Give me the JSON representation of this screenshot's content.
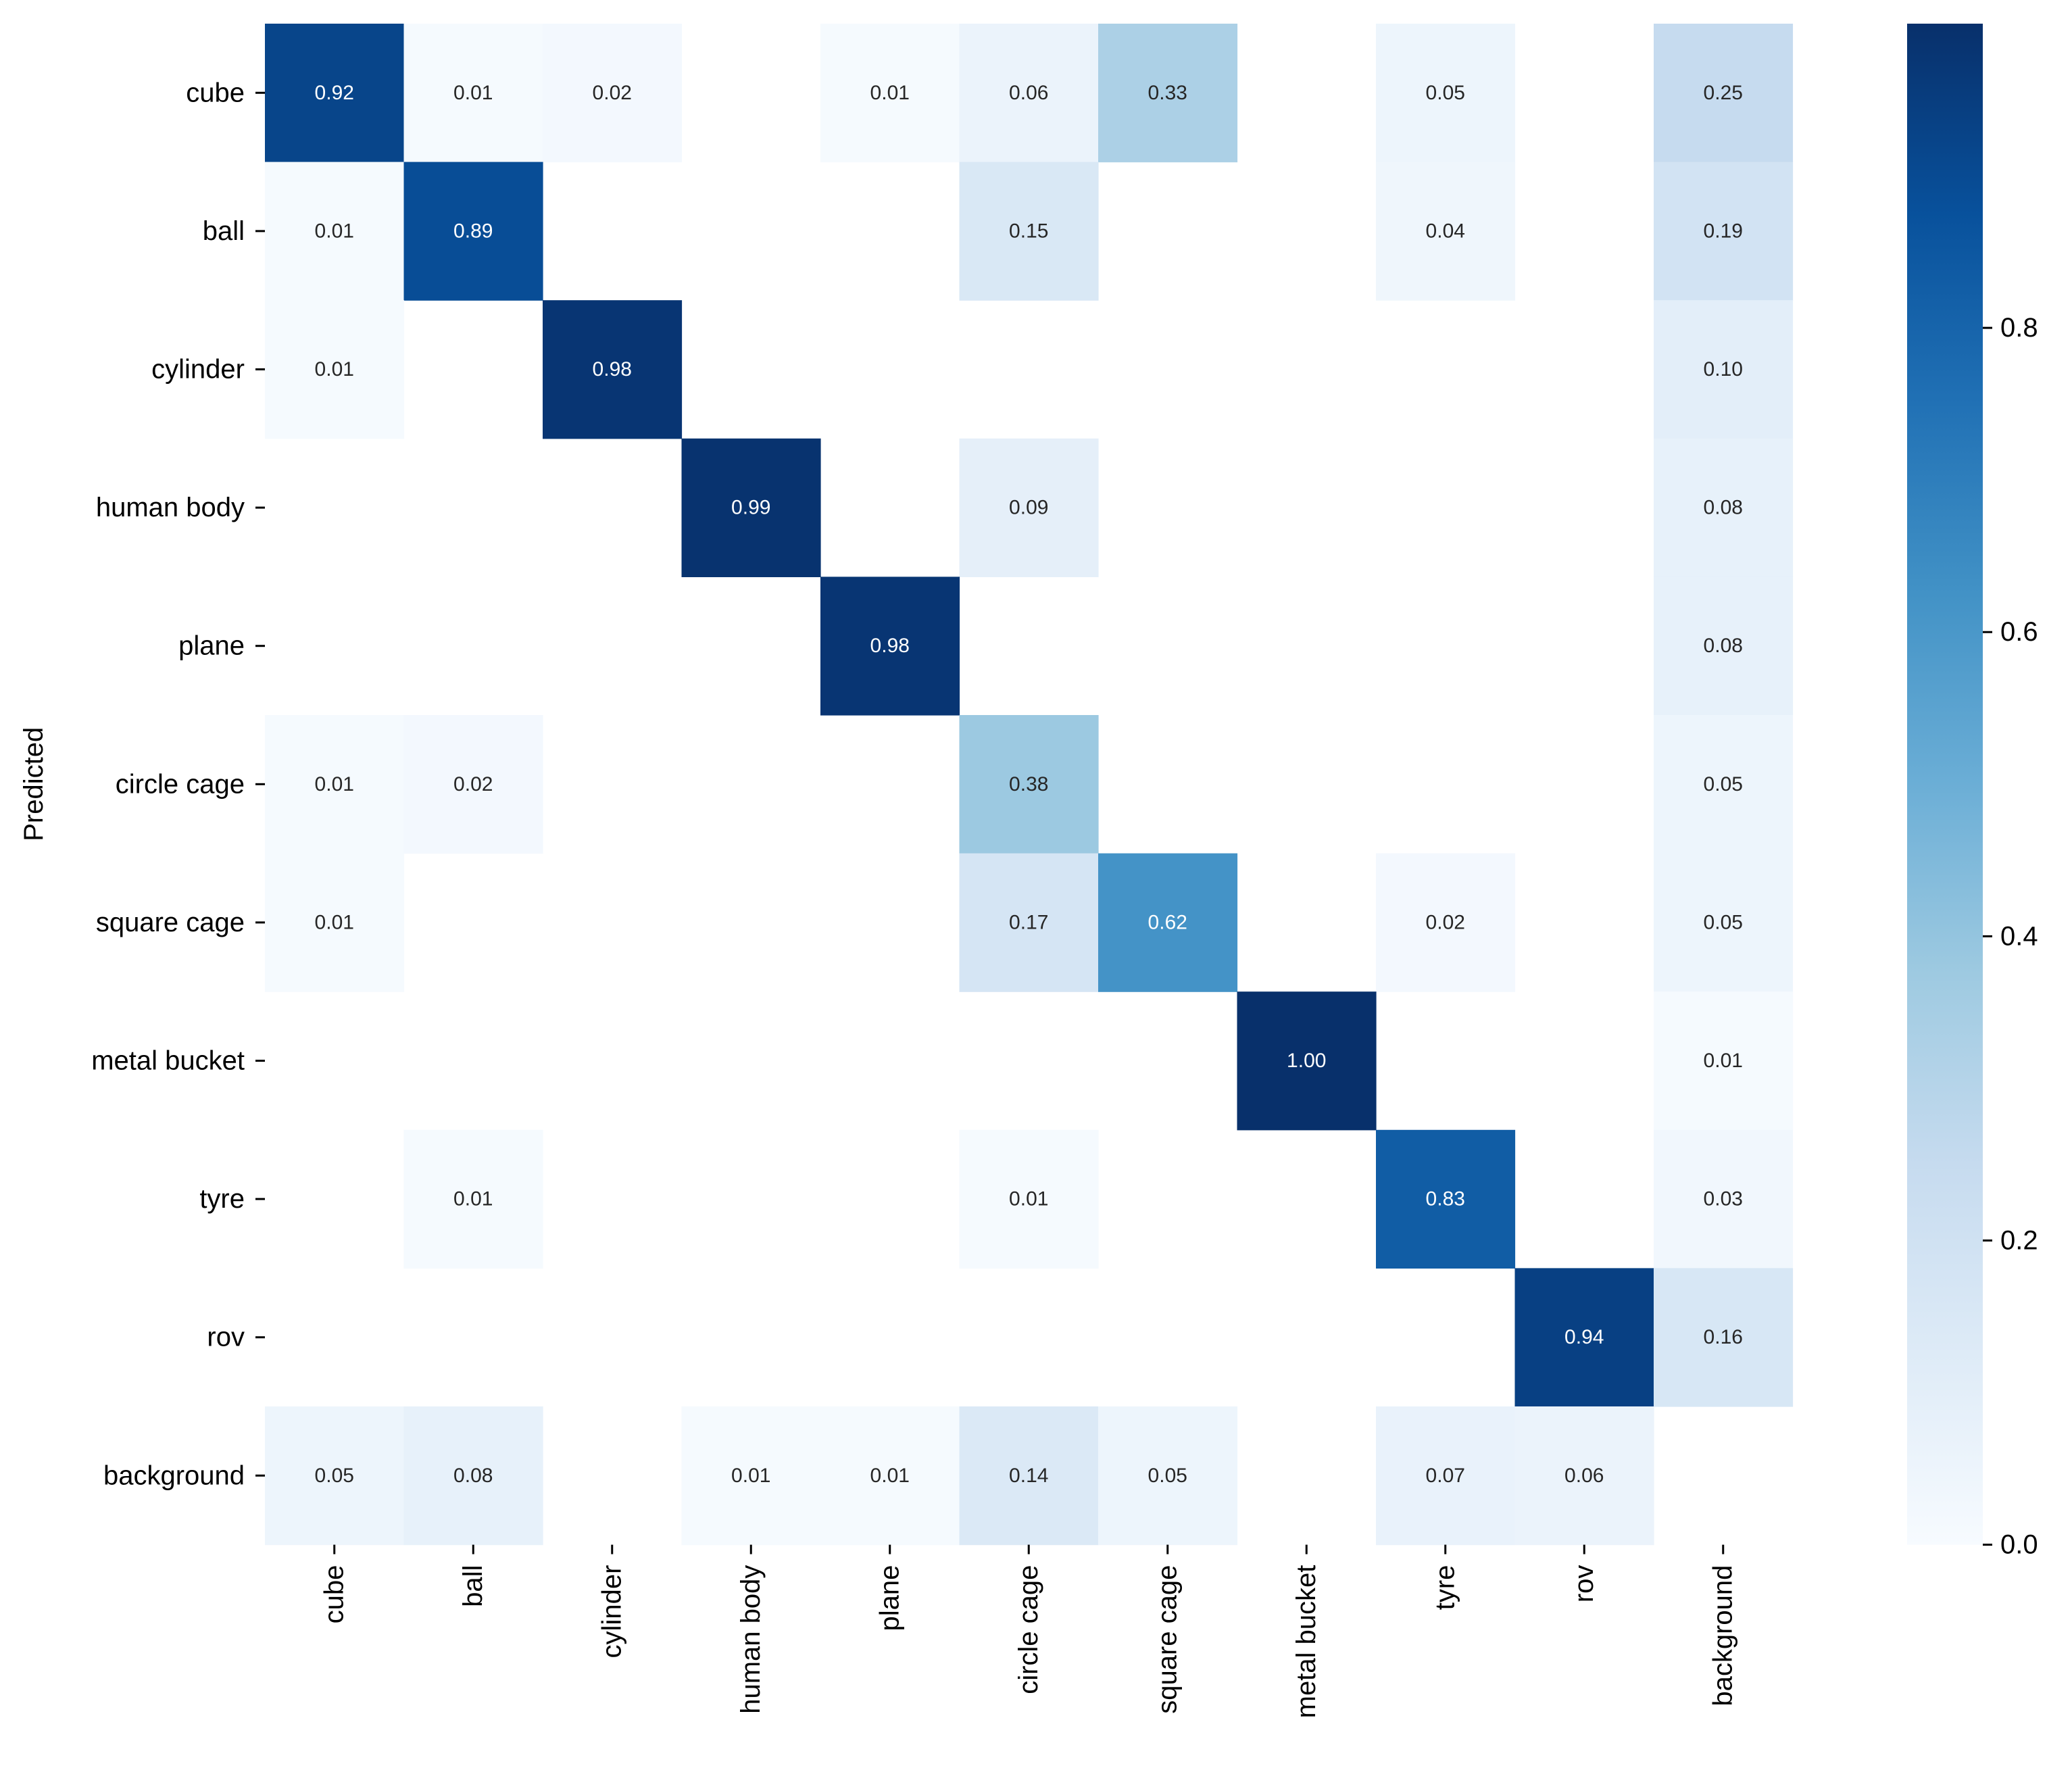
{
  "chart_data": {
    "type": "heatmap",
    "title": "",
    "xlabel": "",
    "ylabel": "Predicted",
    "x_categories": [
      "cube",
      "ball",
      "cylinder",
      "human body",
      "plane",
      "circle cage",
      "square cage",
      "metal bucket",
      "tyre",
      "rov",
      "background"
    ],
    "y_categories": [
      "cube",
      "ball",
      "cylinder",
      "human body",
      "plane",
      "circle cage",
      "square cage",
      "metal bucket",
      "tyre",
      "rov",
      "background"
    ],
    "values": [
      [
        0.92,
        0.01,
        0.02,
        null,
        0.01,
        0.06,
        0.33,
        null,
        0.05,
        null,
        0.25
      ],
      [
        0.01,
        0.89,
        null,
        null,
        null,
        0.15,
        null,
        null,
        0.04,
        null,
        0.19
      ],
      [
        0.01,
        null,
        0.98,
        null,
        null,
        null,
        null,
        null,
        null,
        null,
        0.1
      ],
      [
        null,
        null,
        null,
        0.99,
        null,
        0.09,
        null,
        null,
        null,
        null,
        0.08
      ],
      [
        null,
        null,
        null,
        null,
        0.98,
        null,
        null,
        null,
        null,
        null,
        0.08
      ],
      [
        0.01,
        0.02,
        null,
        null,
        null,
        0.38,
        null,
        null,
        null,
        null,
        0.05
      ],
      [
        0.01,
        null,
        null,
        null,
        null,
        0.17,
        0.62,
        null,
        0.02,
        null,
        0.05
      ],
      [
        null,
        null,
        null,
        null,
        null,
        null,
        null,
        1.0,
        null,
        null,
        0.01
      ],
      [
        null,
        0.01,
        null,
        null,
        null,
        0.01,
        null,
        null,
        0.83,
        null,
        0.03
      ],
      [
        null,
        null,
        null,
        null,
        null,
        null,
        null,
        null,
        null,
        0.94,
        0.16
      ],
      [
        0.05,
        0.08,
        null,
        0.01,
        0.01,
        0.14,
        0.05,
        null,
        0.07,
        0.06,
        null
      ]
    ],
    "value_format": "0.00",
    "colorbar": {
      "range": [
        0,
        1
      ],
      "ticks": [
        0.0,
        0.2,
        0.4,
        0.6,
        0.8
      ],
      "tick_labels": [
        "0.0",
        "0.2",
        "0.4",
        "0.6",
        "0.8"
      ],
      "colormap": "Blues",
      "color_low": "#f7fbff",
      "color_high": "#08306b"
    },
    "grid": false
  }
}
